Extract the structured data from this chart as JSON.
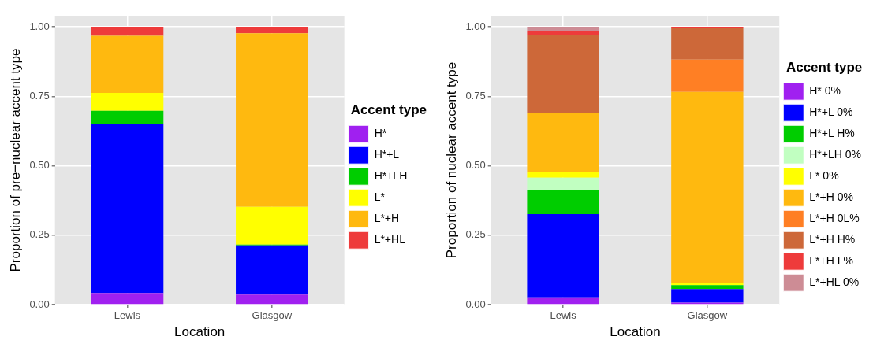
{
  "chart_data": [
    {
      "type": "bar",
      "stacked": true,
      "categories": [
        "Lewis",
        "Glasgow"
      ],
      "xlabel": "Location",
      "ylabel": "Proportion of pre−nuclear accent type",
      "legend_title": "Accent type",
      "legend": "right",
      "grid": true,
      "ylim": [
        0,
        1.04
      ],
      "yticks": [
        {
          "value": 0,
          "label": "0.00"
        },
        {
          "value": 0.25,
          "label": "0.25"
        },
        {
          "value": 0.5,
          "label": "0.50"
        },
        {
          "value": 0.75,
          "label": "0.75"
        },
        {
          "value": 1,
          "label": "1.00"
        }
      ],
      "series": [
        {
          "name": "H*",
          "color": "#a020f0",
          "values": [
            0.042,
            0.036
          ]
        },
        {
          "name": "H*+L",
          "color": "#0000ff",
          "values": [
            0.609,
            0.177
          ]
        },
        {
          "name": "H*+LH",
          "color": "#00cd00",
          "values": [
            0.047,
            0.003
          ]
        },
        {
          "name": "L*",
          "color": "#ffff00",
          "values": [
            0.064,
            0.136
          ]
        },
        {
          "name": "L*+H",
          "color": "#ffb90f",
          "values": [
            0.206,
            0.625
          ]
        },
        {
          "name": "L*+HL",
          "color": "#ee3b3b",
          "values": [
            0.032,
            0.023
          ]
        }
      ]
    },
    {
      "type": "bar",
      "stacked": true,
      "categories": [
        "Lewis",
        "Glasgow"
      ],
      "xlabel": "Location",
      "ylabel": "Proportion of nuclear accent type",
      "legend_title": "Accent type",
      "legend": "right",
      "grid": true,
      "ylim": [
        0,
        1.04
      ],
      "yticks": [
        {
          "value": 0,
          "label": "0.00"
        },
        {
          "value": 0.25,
          "label": "0.25"
        },
        {
          "value": 0.5,
          "label": "0.50"
        },
        {
          "value": 0.75,
          "label": "0.75"
        },
        {
          "value": 1,
          "label": "1.00"
        }
      ],
      "series": [
        {
          "name": "H* 0%",
          "color": "#a020f0",
          "values": [
            0.026,
            0.007
          ]
        },
        {
          "name": "H*+L 0%",
          "color": "#0000ff",
          "values": [
            0.3,
            0.049
          ]
        },
        {
          "name": "H*+L H%",
          "color": "#00cd00",
          "values": [
            0.088,
            0.014
          ]
        },
        {
          "name": "H*+LH 0%",
          "color": "#c1ffc1",
          "values": [
            0.043,
            0
          ]
        },
        {
          "name": "L* 0%",
          "color": "#ffff00",
          "values": [
            0.02,
            0.009
          ]
        },
        {
          "name": "L*+H 0%",
          "color": "#ffb90f",
          "values": [
            0.213,
            0.687
          ]
        },
        {
          "name": "L*+H 0L%",
          "color": "#ff7f24",
          "values": [
            0,
            0.116
          ]
        },
        {
          "name": "L*+H H%",
          "color": "#cd6839",
          "values": [
            0.281,
            0.113
          ]
        },
        {
          "name": "L*+H L%",
          "color": "#ee3b3b",
          "values": [
            0.012,
            0.005
          ]
        },
        {
          "name": "L*+HL 0%",
          "color": "#cd8c95",
          "values": [
            0.017,
            0
          ]
        }
      ]
    }
  ]
}
